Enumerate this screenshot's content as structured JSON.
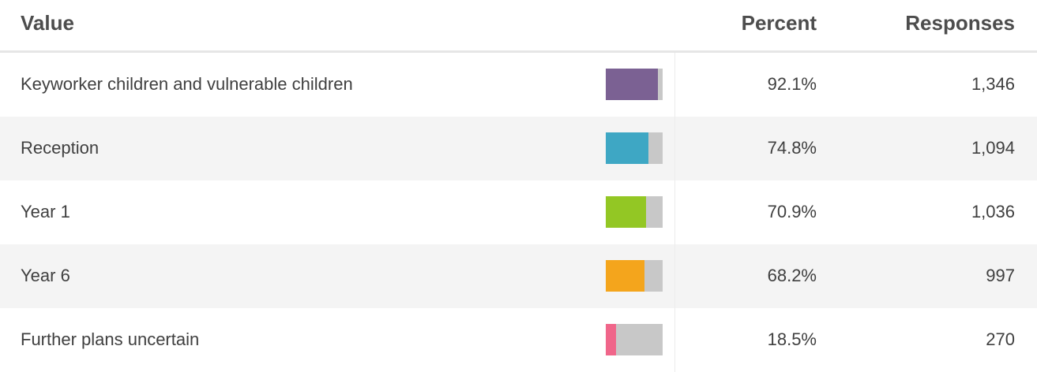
{
  "header": {
    "value_label": "Value",
    "percent_label": "Percent",
    "responses_label": "Responses"
  },
  "rows": [
    {
      "label": "Keyworker children and vulnerable children",
      "percent": "92.1%",
      "responses": "1,346",
      "fraction": 0.921,
      "color": "#7b6193"
    },
    {
      "label": "Reception",
      "percent": "74.8%",
      "responses": "1,094",
      "fraction": 0.748,
      "color": "#3ea7c4"
    },
    {
      "label": "Year 1",
      "percent": "70.9%",
      "responses": "1,036",
      "fraction": 0.709,
      "color": "#93c724"
    },
    {
      "label": "Year 6",
      "percent": "68.2%",
      "responses": "997",
      "fraction": 0.682,
      "color": "#f4a51c"
    },
    {
      "label": "Further plans uncertain",
      "percent": "18.5%",
      "responses": "270",
      "fraction": 0.185,
      "color": "#f0668a"
    }
  ]
}
